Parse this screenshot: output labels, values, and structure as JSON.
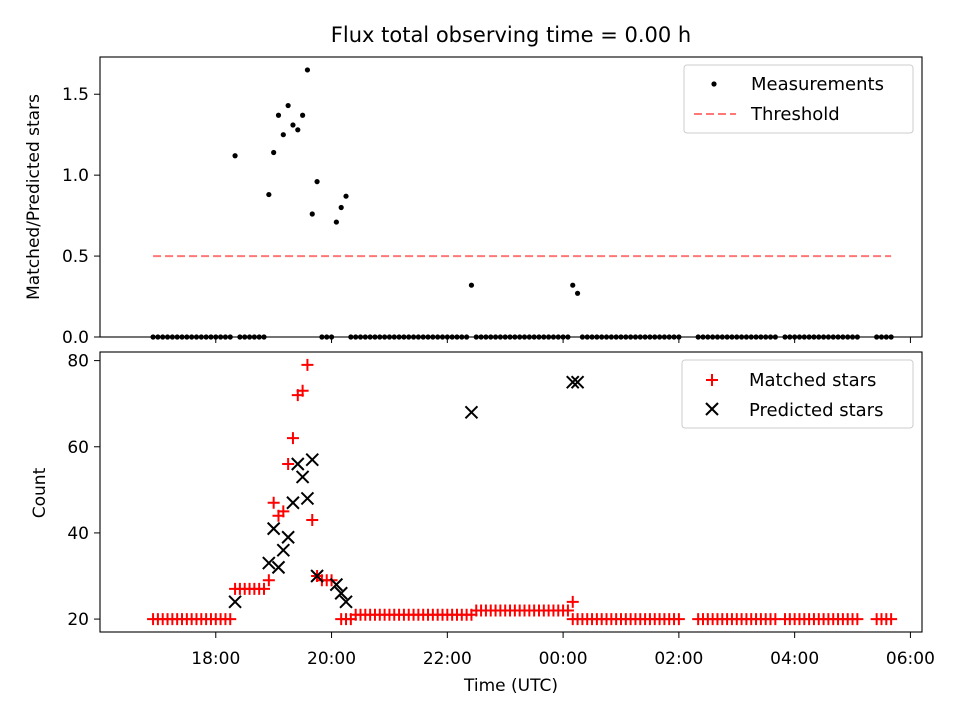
{
  "chart_data": [
    {
      "type": "scatter",
      "title": "Flux total observing time = 0.00 h",
      "ylabel": "Matched/Predicted stars",
      "xlabel": "",
      "ylim": [
        0,
        1.73
      ],
      "xlim_hours": [
        16.0,
        30.2
      ],
      "yticks": [
        {
          "v": 0.0,
          "label": "0.0"
        },
        {
          "v": 0.5,
          "label": "0.5"
        },
        {
          "v": 1.0,
          "label": "1.0"
        },
        {
          "v": 1.5,
          "label": "1.5"
        }
      ],
      "grid": false,
      "legend_position": "upper-right",
      "series": [
        {
          "name": "Measurements",
          "style": "dot",
          "color": "#000000",
          "points": [
            [
              "18:20",
              1.12
            ],
            [
              "18:55",
              0.88
            ],
            [
              "19:00",
              1.14
            ],
            [
              "19:05",
              1.37
            ],
            [
              "19:10",
              1.25
            ],
            [
              "19:15",
              1.43
            ],
            [
              "19:20",
              1.31
            ],
            [
              "19:25",
              1.28
            ],
            [
              "19:30",
              1.37
            ],
            [
              "19:35",
              1.65
            ],
            [
              "19:40",
              0.76
            ],
            [
              "19:45",
              0.96
            ],
            [
              "20:05",
              0.71
            ],
            [
              "20:10",
              0.8
            ],
            [
              "20:15",
              0.87
            ],
            [
              "22:25",
              0.32
            ],
            [
              "00:10",
              0.32
            ],
            [
              "00:15",
              0.27
            ]
          ],
          "zero_points": {
            "ranges": [
              [
                "16:55",
                "18:15",
                5
              ],
              [
                "18:25",
                "18:50",
                5
              ],
              [
                "19:50",
                "20:00",
                5
              ],
              [
                "20:20",
                "22:20",
                5
              ],
              [
                "22:30",
                "00:05",
                5
              ],
              [
                "00:20",
                "02:00",
                5
              ],
              [
                "02:20",
                "03:40",
                5
              ],
              [
                "03:50",
                "05:05",
                5
              ],
              [
                "05:25",
                "05:40",
                5
              ]
            ]
          }
        },
        {
          "name": "Threshold",
          "style": "dashed-line",
          "color": "#ff7777",
          "x_range": [
            "16:55",
            "05:40"
          ],
          "value": 0.5
        }
      ]
    },
    {
      "type": "scatter",
      "title": "",
      "ylabel": "Count",
      "xlabel": "Time (UTC)",
      "ylim": [
        17,
        82
      ],
      "xlim_hours": [
        16.0,
        30.2
      ],
      "yticks": [
        {
          "v": 20,
          "label": "20"
        },
        {
          "v": 40,
          "label": "40"
        },
        {
          "v": 60,
          "label": "60"
        },
        {
          "v": 80,
          "label": "80"
        }
      ],
      "xticks": [
        {
          "time": "18:00",
          "label": "18:00"
        },
        {
          "time": "20:00",
          "label": "20:00"
        },
        {
          "time": "22:00",
          "label": "22:00"
        },
        {
          "time": "00:00",
          "label": "00:00"
        },
        {
          "time": "02:00",
          "label": "02:00"
        },
        {
          "time": "04:00",
          "label": "04:00"
        },
        {
          "time": "06:00",
          "label": "06:00"
        }
      ],
      "grid": false,
      "legend_position": "upper-right",
      "series": [
        {
          "name": "Matched stars",
          "style": "plus",
          "color": "#ff0000",
          "points": [
            [
              "18:20",
              27
            ],
            [
              "18:25",
              27
            ],
            [
              "18:30",
              27
            ],
            [
              "18:35",
              27
            ],
            [
              "18:40",
              27
            ],
            [
              "18:45",
              27
            ],
            [
              "18:50",
              27
            ],
            [
              "18:55",
              29
            ],
            [
              "19:00",
              47
            ],
            [
              "19:05",
              44
            ],
            [
              "19:10",
              45
            ],
            [
              "19:15",
              56
            ],
            [
              "19:20",
              62
            ],
            [
              "19:25",
              72
            ],
            [
              "19:30",
              73
            ],
            [
              "19:35",
              79
            ],
            [
              "19:40",
              43
            ],
            [
              "19:45",
              30
            ],
            [
              "19:50",
              29
            ],
            [
              "19:55",
              29
            ],
            [
              "20:00",
              29
            ],
            [
              "00:10",
              24
            ]
          ],
          "constant_runs": [
            [
              "16:55",
              "18:15",
              20,
              5
            ],
            [
              "20:10",
              "20:20",
              20,
              5
            ],
            [
              "20:25",
              "22:25",
              21,
              5
            ],
            [
              "22:30",
              "00:05",
              22,
              5
            ],
            [
              "00:10",
              "02:00",
              20,
              5
            ],
            [
              "02:20",
              "03:40",
              20,
              5
            ],
            [
              "03:50",
              "05:05",
              20,
              5
            ],
            [
              "05:25",
              "05:40",
              20,
              5
            ]
          ]
        },
        {
          "name": "Predicted stars",
          "style": "x",
          "color": "#000000",
          "points": [
            [
              "18:20",
              24
            ],
            [
              "18:55",
              33
            ],
            [
              "19:00",
              41
            ],
            [
              "19:05",
              32
            ],
            [
              "19:10",
              36
            ],
            [
              "19:15",
              39
            ],
            [
              "19:20",
              47
            ],
            [
              "19:25",
              56
            ],
            [
              "19:30",
              53
            ],
            [
              "19:35",
              48
            ],
            [
              "19:40",
              57
            ],
            [
              "19:45",
              30
            ],
            [
              "20:05",
              28
            ],
            [
              "20:10",
              26
            ],
            [
              "20:15",
              24
            ],
            [
              "22:25",
              68
            ],
            [
              "00:10",
              75
            ],
            [
              "00:15",
              75
            ]
          ]
        }
      ]
    }
  ]
}
